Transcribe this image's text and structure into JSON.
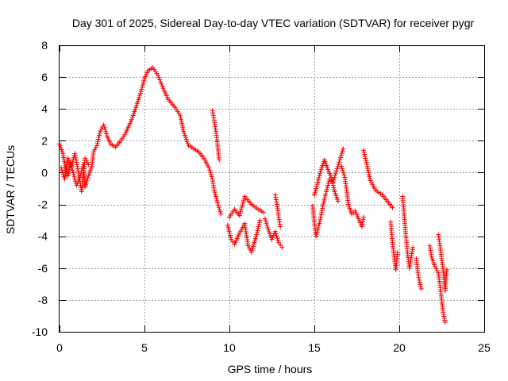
{
  "chart_data": {
    "type": "scatter",
    "title": "Day 301 of 2025, Sidereal Day-to-day VTEC variation (SDTVAR) for receiver pygr",
    "xlabel": "GPS time / hours",
    "ylabel": "SDTVAR / TECUs",
    "xlim": [
      0,
      25
    ],
    "ylim": [
      -10,
      8
    ],
    "x_ticks": [
      0,
      5,
      10,
      15,
      20,
      25
    ],
    "y_ticks": [
      -10,
      -8,
      -6,
      -4,
      -2,
      0,
      2,
      4,
      6,
      8
    ],
    "x_tick_labels": [
      "0",
      "5",
      "10",
      "15",
      "20",
      "25"
    ],
    "y_tick_labels": [
      "-10",
      "-8",
      "-6",
      "-4",
      "-2",
      "0",
      "2",
      "4",
      "6",
      "8"
    ],
    "grid": true,
    "marker": "+",
    "series_color": "#ff0000",
    "series": [
      {
        "name": "SDTVAR",
        "segments": [
          [
            [
              0.0,
              1.8
            ],
            [
              0.2,
              1.2
            ],
            [
              0.35,
              0.3
            ],
            [
              0.5,
              -0.2
            ],
            [
              0.65,
              0.6
            ],
            [
              0.8,
              0.0
            ],
            [
              1.0,
              -0.8
            ],
            [
              1.2,
              -0.3
            ],
            [
              1.4,
              0.5
            ],
            [
              1.5,
              -0.9
            ],
            [
              1.7,
              -0.2
            ],
            [
              1.9,
              0.4
            ],
            [
              2.0,
              1.3
            ],
            [
              2.2,
              1.7
            ],
            [
              2.4,
              2.6
            ],
            [
              2.6,
              3.0
            ],
            [
              2.8,
              2.3
            ],
            [
              3.0,
              1.8
            ],
            [
              3.3,
              1.6
            ],
            [
              3.6,
              2.0
            ],
            [
              3.9,
              2.5
            ],
            [
              4.2,
              3.2
            ],
            [
              4.5,
              4.1
            ],
            [
              4.8,
              5.1
            ],
            [
              5.0,
              5.9
            ],
            [
              5.2,
              6.4
            ],
            [
              5.5,
              6.6
            ],
            [
              5.8,
              6.1
            ],
            [
              6.1,
              5.3
            ],
            [
              6.4,
              4.6
            ],
            [
              6.8,
              4.1
            ],
            [
              7.1,
              3.6
            ],
            [
              7.3,
              2.6
            ],
            [
              7.6,
              1.7
            ],
            [
              7.9,
              1.5
            ],
            [
              8.2,
              1.3
            ],
            [
              8.5,
              0.9
            ],
            [
              8.8,
              0.3
            ],
            [
              9.0,
              -0.4
            ],
            [
              9.1,
              -1.1
            ],
            [
              9.3,
              -1.9
            ],
            [
              9.5,
              -2.6
            ]
          ],
          [
            [
              0.1,
              0.3
            ],
            [
              0.3,
              -0.4
            ],
            [
              0.5,
              0.9
            ],
            [
              0.7,
              0.4
            ],
            [
              0.9,
              1.2
            ],
            [
              1.1,
              0.1
            ],
            [
              1.3,
              -1.2
            ],
            [
              1.5,
              0.9
            ],
            [
              1.7,
              0.5
            ]
          ],
          [
            [
              9.0,
              3.9
            ],
            [
              9.1,
              3.3
            ],
            [
              9.2,
              2.6
            ],
            [
              9.3,
              1.8
            ],
            [
              9.4,
              0.8
            ]
          ],
          [
            [
              9.9,
              -3.3
            ],
            [
              10.1,
              -4.2
            ],
            [
              10.3,
              -4.5
            ],
            [
              10.6,
              -3.8
            ],
            [
              10.9,
              -3.2
            ],
            [
              11.1,
              -4.6
            ],
            [
              11.3,
              -5.0
            ],
            [
              11.6,
              -3.9
            ],
            [
              11.8,
              -3.0
            ]
          ],
          [
            [
              10.0,
              -2.8
            ],
            [
              10.3,
              -2.3
            ],
            [
              10.6,
              -2.7
            ],
            [
              10.9,
              -1.5
            ],
            [
              11.3,
              -2.0
            ],
            [
              11.7,
              -2.3
            ],
            [
              12.0,
              -2.5
            ]
          ],
          [
            [
              12.1,
              -2.9
            ],
            [
              12.3,
              -3.6
            ],
            [
              12.5,
              -4.2
            ],
            [
              12.7,
              -3.7
            ],
            [
              12.9,
              -4.4
            ],
            [
              13.1,
              -4.7
            ]
          ],
          [
            [
              12.7,
              -1.4
            ],
            [
              12.8,
              -2.0
            ],
            [
              12.9,
              -2.8
            ],
            [
              13.0,
              -3.4
            ]
          ],
          [
            [
              14.9,
              -2.1
            ],
            [
              15.0,
              -3.1
            ],
            [
              15.1,
              -4.0
            ],
            [
              15.3,
              -3.2
            ],
            [
              15.5,
              -2.1
            ],
            [
              15.7,
              -1.2
            ],
            [
              15.9,
              -0.4
            ],
            [
              16.1,
              -0.6
            ],
            [
              16.3,
              0.1
            ],
            [
              16.5,
              0.8
            ],
            [
              16.7,
              1.5
            ]
          ],
          [
            [
              15.0,
              -1.4
            ],
            [
              15.2,
              -0.6
            ],
            [
              15.4,
              0.2
            ],
            [
              15.6,
              0.8
            ],
            [
              15.8,
              0.2
            ],
            [
              16.0,
              -0.3
            ],
            [
              16.2,
              -1.2
            ],
            [
              16.4,
              -1.8
            ]
          ],
          [
            [
              16.6,
              0.4
            ],
            [
              16.8,
              -0.3
            ],
            [
              16.9,
              -1.1
            ],
            [
              17.0,
              -2.0
            ],
            [
              17.2,
              -2.6
            ],
            [
              17.4,
              -2.4
            ],
            [
              17.6,
              -2.9
            ],
            [
              17.8,
              -3.4
            ],
            [
              17.9,
              -2.8
            ]
          ],
          [
            [
              17.9,
              1.4
            ],
            [
              18.3,
              -0.5
            ],
            [
              18.6,
              -1.1
            ],
            [
              19.0,
              -1.4
            ],
            [
              19.3,
              -1.8
            ],
            [
              19.6,
              -2.2
            ]
          ],
          [
            [
              19.5,
              -3.1
            ],
            [
              19.6,
              -4.4
            ],
            [
              19.7,
              -5.3
            ],
            [
              19.8,
              -6.1
            ],
            [
              19.9,
              -5.0
            ]
          ],
          [
            [
              20.2,
              -1.5
            ],
            [
              20.3,
              -2.8
            ],
            [
              20.4,
              -4.1
            ],
            [
              20.5,
              -5.2
            ],
            [
              20.6,
              -6.0
            ],
            [
              20.8,
              -4.7
            ]
          ],
          [
            [
              21.0,
              -5.4
            ],
            [
              21.1,
              -6.3
            ],
            [
              21.2,
              -6.9
            ],
            [
              21.3,
              -7.3
            ]
          ],
          [
            [
              21.8,
              -4.6
            ],
            [
              21.9,
              -5.3
            ],
            [
              22.1,
              -5.9
            ],
            [
              22.3,
              -6.3
            ],
            [
              22.4,
              -7.1
            ],
            [
              22.5,
              -8.0
            ],
            [
              22.6,
              -8.9
            ],
            [
              22.7,
              -9.4
            ]
          ],
          [
            [
              22.3,
              -3.9
            ],
            [
              22.4,
              -4.6
            ],
            [
              22.5,
              -5.4
            ],
            [
              22.6,
              -6.3
            ],
            [
              22.7,
              -7.4
            ],
            [
              22.8,
              -6.1
            ]
          ]
        ]
      }
    ]
  }
}
